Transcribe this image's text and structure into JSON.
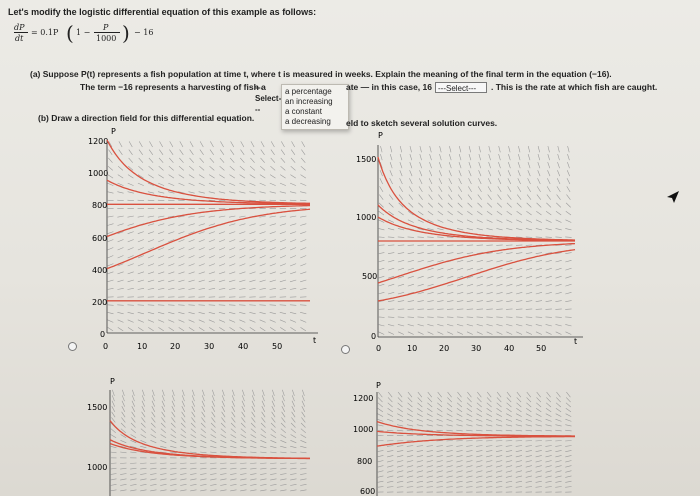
{
  "intro": "Let's modify the logistic differential equation of this example as follows:",
  "equation": {
    "dp": "dP",
    "dt": "dt",
    "equals": "= 0.1P",
    "one_minus": "1 −",
    "p": "P",
    "thousand": "1000",
    "minus16": "− 16"
  },
  "part_a": {
    "question": "(a) Suppose P(t) represents a fish population at time t, where t is measured in weeks. Explain the meaning of the final term in the equation (−16).",
    "line_start": "The term −16 represents a harvesting of fish a",
    "line_mid": "ate — in this case, 16",
    "line_end": ". This is the rate at which fish are caught.",
    "select1_value": "---Select---",
    "select2_value": "---Select---",
    "dropdown_options": [
      "a percentage",
      "an increasing",
      "a constant",
      "a decreasing"
    ]
  },
  "part_b": {
    "left": "(b) Draw a direction field for this differential equation.",
    "right": "eld to sketch several solution curves."
  },
  "graphs": [
    {
      "ylabel": "P",
      "xlabel": "t",
      "yticks": [
        "1200",
        "1000",
        "800",
        "600",
        "400",
        "200",
        "0"
      ],
      "xticks": [
        "0",
        "10",
        "20",
        "30",
        "40",
        "50"
      ]
    },
    {
      "ylabel": "P",
      "xlabel": "t",
      "yticks": [
        "1500",
        "1000",
        "500",
        "0"
      ],
      "xticks": [
        "0",
        "10",
        "20",
        "30",
        "40",
        "50"
      ]
    },
    {
      "ylabel": "P",
      "yticks": [
        "1500",
        "1000"
      ]
    },
    {
      "ylabel": "P",
      "yticks": [
        "1200",
        "1000",
        "800",
        "600"
      ]
    }
  ],
  "colors": {
    "curve": "#d9513f",
    "tick": "#9a9a9a",
    "axis": "#333333"
  }
}
